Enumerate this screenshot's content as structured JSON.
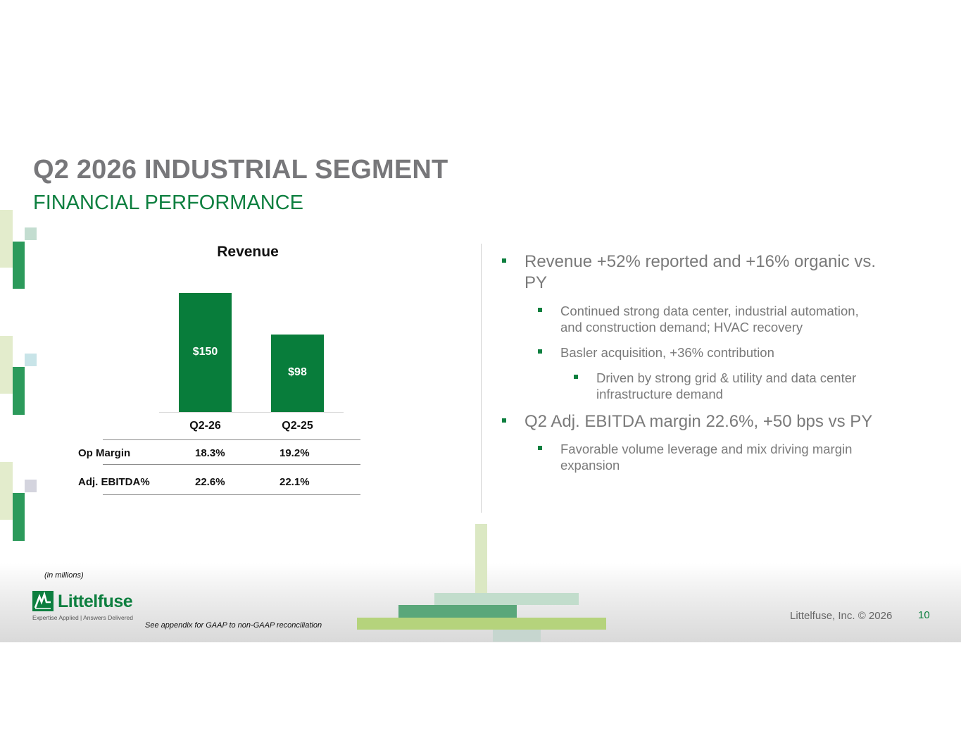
{
  "header": {
    "title": "Q2 2026 INDUSTRIAL SEGMENT",
    "subtitle": "FINANCIAL PERFORMANCE"
  },
  "chart_data": {
    "type": "bar",
    "title": "Revenue",
    "categories": [
      "Q2-26",
      "Q2-25"
    ],
    "values": [
      150,
      98
    ],
    "data_labels": [
      "$150",
      "$98"
    ],
    "xlabel": "",
    "ylabel": "",
    "ylim": [
      0,
      160
    ],
    "grid": false,
    "color": "#087d3b"
  },
  "metrics_table": {
    "rows": [
      {
        "label": "Op Margin",
        "values": [
          "18.3%",
          "19.2%"
        ]
      },
      {
        "label": "Adj. EBITDA%",
        "values": [
          "22.6%",
          "22.1%"
        ]
      }
    ]
  },
  "bullets": {
    "b1": {
      "line1": "Revenue +52% reported and +16% organic vs.",
      "line2": "PY"
    },
    "b1a": {
      "line1": "Continued strong data center, industrial automation,",
      "line2": "and construction demand; HVAC recovery"
    },
    "b1b": {
      "line1": "Basler acquisition, +36% contribution"
    },
    "b1b1": {
      "line1": "Driven by strong grid & utility and data center",
      "line2": "infrastructure demand"
    },
    "b2": {
      "line1": "Q2 Adj. EBITDA margin 22.6%, +50 bps vs PY"
    },
    "b2a": {
      "line1": "Favorable volume leverage and mix driving margin",
      "line2": "expansion"
    }
  },
  "footer": {
    "in_millions": "(in millions)",
    "appendix_note": "See appendix for GAAP to non-GAAP reconciliation",
    "copyright": "Littelfuse, Inc. © 2026",
    "page_number": "10",
    "logo_word": "Littelfuse",
    "logo_tagline": "Expertise Applied | Answers Delivered"
  },
  "colors": {
    "brand_green": "#0d7f3f",
    "bar_green": "#087d3b",
    "title_gray": "#77777a",
    "light_green": "#b5d37c"
  }
}
